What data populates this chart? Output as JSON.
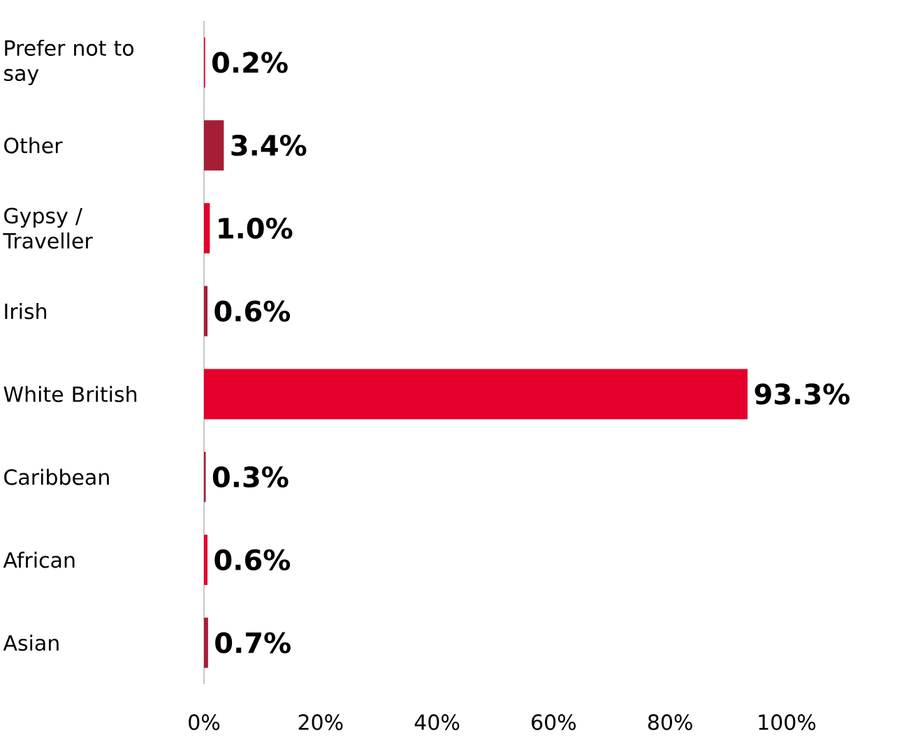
{
  "chart_data": {
    "type": "bar",
    "orientation": "horizontal",
    "categories": [
      "Prefer not to say",
      "Other",
      "Gypsy / Traveller",
      "Irish",
      "White British",
      "Caribbean",
      "African",
      "Asian"
    ],
    "values": [
      0.2,
      3.4,
      1.0,
      0.6,
      93.3,
      0.3,
      0.6,
      0.7
    ],
    "colors": [
      "#e4002b",
      "#a51e36",
      "#e4002b",
      "#a51e36",
      "#e4002b",
      "#a51e36",
      "#e4002b",
      "#a51e36"
    ],
    "value_labels": [
      "0.2%",
      "3.4%",
      "1.0%",
      "0.6%",
      "93.3%",
      "0.3%",
      "0.6%",
      "0.7%"
    ],
    "xlim": [
      0,
      100
    ],
    "xticks": [
      {
        "value": 0,
        "label": "0%"
      },
      {
        "value": 20,
        "label": "20%"
      },
      {
        "value": 40,
        "label": "40%"
      },
      {
        "value": 60,
        "label": "60%"
      },
      {
        "value": 80,
        "label": "80%"
      },
      {
        "value": 100,
        "label": "100%"
      }
    ],
    "grid": false
  }
}
